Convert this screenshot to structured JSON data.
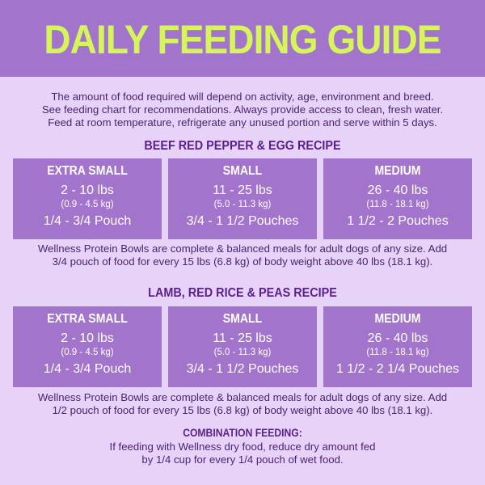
{
  "header": {
    "title": "DAILY FEEDING GUIDE"
  },
  "intro": {
    "lines": [
      "The amount of food required will depend on activity, age, environment and breed.",
      "See feeding chart for recommendations. Always provide access to clean, fresh water.",
      "Feed at room temperature, refrigerate any unused portion and serve within 5 days."
    ]
  },
  "recipes": [
    {
      "title": "BEEF RED PEPPER & EGG RECIPE",
      "sizes": [
        {
          "name": "EXTRA SMALL",
          "lbs": "2 - 10 lbs",
          "kg": "(0.9 - 4.5 kg)",
          "pouch": "1/4 - 3/4  Pouch"
        },
        {
          "name": "SMALL",
          "lbs": "11 - 25 lbs",
          "kg": "(5.0 - 11.3 kg)",
          "pouch": "3/4 - 1 1/2 Pouches"
        },
        {
          "name": "MEDIUM",
          "lbs": "26 - 40 lbs",
          "kg": "(11.8 - 18.1 kg)",
          "pouch": "1 1/2 - 2 Pouches"
        }
      ],
      "note_lines": [
        "Wellness Protein Bowls are complete & balanced meals for adult dogs of any size. Add",
        "3/4 pouch of food for every 15 lbs (6.8 kg) of body weight above 40 lbs (18.1 kg)."
      ]
    },
    {
      "title": "LAMB, RED RICE & PEAS RECIPE",
      "sizes": [
        {
          "name": "EXTRA SMALL",
          "lbs": "2 - 10 lbs",
          "kg": "(0.9 - 4.5 kg)",
          "pouch": "1/4 - 3/4  Pouch"
        },
        {
          "name": "SMALL",
          "lbs": "11 - 25 lbs",
          "kg": "(5.0 - 11.3 kg)",
          "pouch": "3/4 - 1 1/2 Pouches"
        },
        {
          "name": "MEDIUM",
          "lbs": "26 - 40 lbs",
          "kg": "(11.8 - 18.1 kg)",
          "pouch": "1 1/2 - 2 1/4 Pouches"
        }
      ],
      "note_lines": [
        "Wellness Protein Bowls are complete & balanced meals for adult dogs of any size. Add",
        "1/2 pouch of food for every 15 lbs (6.8 kg) of body weight above 40 lbs (18.1 kg)."
      ]
    }
  ],
  "combination": {
    "title": "COMBINATION FEEDING:",
    "lines": [
      "If feeding with Wellness dry food, reduce dry amount fed",
      "by 1/4 cup for every 1/4 pouch of wet food."
    ]
  },
  "colors": {
    "background": "#e6d3f7",
    "header": "#a374cc",
    "title": "#d6f55a",
    "card": "#a374cc",
    "text": "#4a2370",
    "recipe_title": "#5a1f8c"
  }
}
